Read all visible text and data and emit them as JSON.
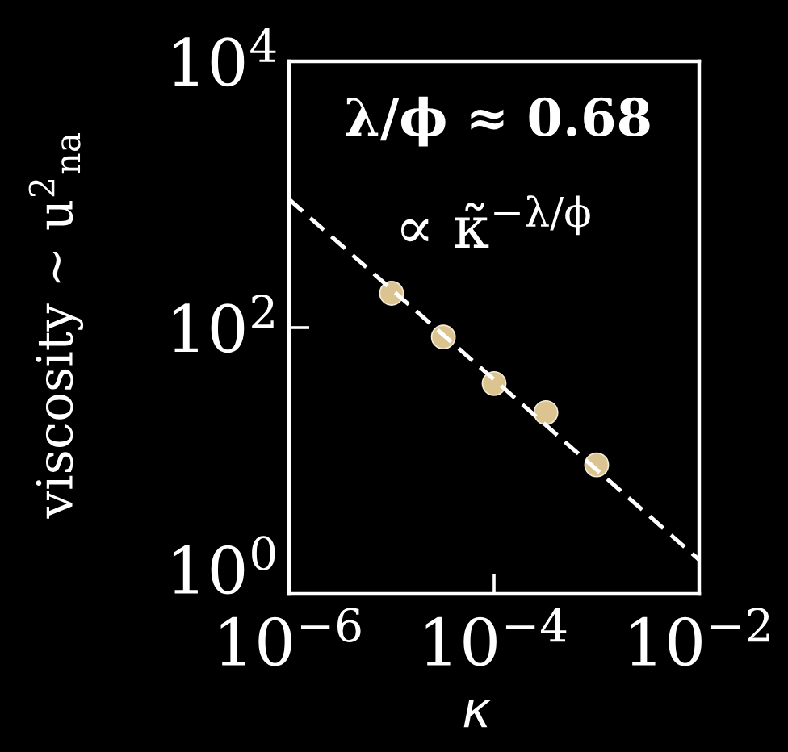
{
  "chart_data": {
    "type": "scatter",
    "xlabel": "κ",
    "ylabel": "viscosity ∼ u$^{2}$$_{na}$",
    "log": "xy",
    "xlim": [
      1e-06,
      0.01
    ],
    "ylim": [
      1,
      10000
    ],
    "xticks": [
      {
        "value": 1e-06,
        "label": "10$^{−6}$"
      },
      {
        "value": 0.0001,
        "label": "10$^{−4}$"
      },
      {
        "value": 0.01,
        "label": "10$^{−2}$"
      }
    ],
    "yticks": [
      {
        "value": 1,
        "label": "10$^{0}$"
      },
      {
        "value": 100,
        "label": "10$^{2}$"
      },
      {
        "value": 10000,
        "label": "10$^{4}$"
      }
    ],
    "annotations": [
      "λ/ϕ ≈ 0.68",
      "∝ κ̃$^{−λ/ϕ}$"
    ],
    "series": [
      {
        "color": "#dcc490",
        "marker": "circle",
        "x": [
          1e-05,
          3.2e-05,
          0.0001,
          0.00032,
          0.001
        ],
        "values": [
          181,
          85,
          38,
          23,
          9.3
        ]
      },
      {
        "type": "line",
        "color": "#ffffff",
        "line_style": "dashed",
        "marker": "none",
        "x": [
          1e-06,
          0.01
        ],
        "values": [
          920,
          1.8
        ]
      }
    ]
  }
}
